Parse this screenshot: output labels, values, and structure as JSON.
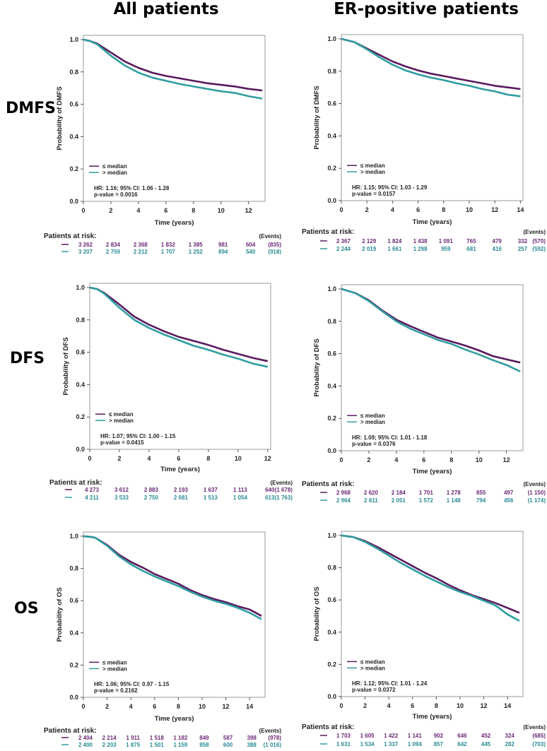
{
  "column_titles": [
    "All patients",
    "ER-positive patients"
  ],
  "row_labels": [
    "DMFS",
    "DFS",
    "OS"
  ],
  "colors": {
    "low": "#5a1a5e",
    "high": "#2f9da0",
    "low_text": "#6b2a77",
    "high_text": "#2a8c94"
  },
  "chart_data": [
    {
      "type": "line",
      "group": "All patients",
      "endpoint": "DMFS",
      "xlabel": "Time (years)",
      "ylabel": "Probability of DMFS",
      "xticks": [
        0,
        2,
        4,
        6,
        8,
        10,
        12
      ],
      "yticks": [
        "0.0",
        "0.2",
        "0.4",
        "0.6",
        "0.8",
        "1.0"
      ],
      "ylim": [
        0,
        1
      ],
      "legend": [
        "≤ median",
        "> median"
      ],
      "legend_placement": "bottom-left",
      "hr_text": "HR: 1.16; 95% CI: 1.06 - 1.28",
      "p_text": "p-value = 0.0016",
      "series": [
        {
          "name": "≤ median",
          "x": [
            0,
            0.5,
            1,
            2,
            3,
            4,
            5,
            6,
            7,
            8,
            9,
            10,
            11,
            12,
            13
          ],
          "y": [
            1,
            0.99,
            0.975,
            0.92,
            0.865,
            0.825,
            0.795,
            0.775,
            0.76,
            0.745,
            0.73,
            0.72,
            0.71,
            0.695,
            0.685
          ]
        },
        {
          "name": "> median",
          "x": [
            0,
            0.5,
            1,
            2,
            3,
            4,
            5,
            6,
            7,
            8,
            9,
            10,
            11,
            12,
            13
          ],
          "y": [
            1,
            0.99,
            0.97,
            0.9,
            0.84,
            0.795,
            0.765,
            0.745,
            0.725,
            0.71,
            0.695,
            0.68,
            0.67,
            0.65,
            0.635
          ]
        }
      ],
      "risk_label": "Patients at risk:",
      "events_label": "(Events)",
      "risk": [
        [
          "3 262",
          "2 834",
          "2 368",
          "1 832",
          "1 385",
          "981",
          "604"
        ],
        [
          "3 207",
          "2 759",
          "2 212",
          "1 707",
          "1 252",
          "894",
          "540"
        ]
      ],
      "events": [
        "(835)",
        "(918)"
      ]
    },
    {
      "type": "line",
      "group": "ER-positive patients",
      "endpoint": "DMFS",
      "xlabel": "Time (years)",
      "ylabel": "Probability of DMFS",
      "xticks": [
        0,
        2,
        4,
        6,
        8,
        10,
        12,
        14
      ],
      "yticks": [
        "0.0",
        "0.2",
        "0.4",
        "0.6",
        "0.8",
        "1.0"
      ],
      "ylim": [
        0,
        1
      ],
      "legend": [
        "≤ median",
        "> median"
      ],
      "legend_placement": "bottom-left",
      "hr_text": "HR: 1.15; 95% CI: 1.03 - 1.29",
      "p_text": "p-value = 0.0157",
      "series": [
        {
          "name": "≤ median",
          "x": [
            0,
            1,
            2,
            3,
            4,
            5,
            6,
            7,
            8,
            9,
            10,
            11,
            12,
            13,
            14
          ],
          "y": [
            1,
            0.98,
            0.94,
            0.9,
            0.86,
            0.83,
            0.805,
            0.785,
            0.77,
            0.755,
            0.74,
            0.725,
            0.71,
            0.7,
            0.69
          ]
        },
        {
          "name": "> median",
          "x": [
            0,
            1,
            2,
            3,
            4,
            5,
            6,
            7,
            8,
            9,
            10,
            11,
            12,
            13,
            14
          ],
          "y": [
            1,
            0.98,
            0.935,
            0.885,
            0.84,
            0.805,
            0.78,
            0.76,
            0.745,
            0.725,
            0.71,
            0.69,
            0.675,
            0.655,
            0.645
          ]
        }
      ],
      "risk_label": "Patients at risk:",
      "events_label": "(Events)",
      "risk": [
        [
          "2 367",
          "2 129",
          "1 824",
          "1 438",
          "1 091",
          "765",
          "479",
          "332"
        ],
        [
          "2 244",
          "2 019",
          "1 661",
          "1 298",
          "959",
          "681",
          "416",
          "257"
        ]
      ],
      "events": [
        "(570)",
        "(592)"
      ]
    },
    {
      "type": "line",
      "group": "All patients",
      "endpoint": "DFS",
      "xlabel": "Time (years)",
      "ylabel": "Probability of DFS",
      "xticks": [
        0,
        2,
        4,
        6,
        8,
        10,
        12
      ],
      "yticks": [
        "0.0",
        "0.2",
        "0.4",
        "0.6",
        "0.8",
        "1.0"
      ],
      "ylim": [
        0,
        1
      ],
      "legend": [
        "≤ median",
        "> median"
      ],
      "legend_placement": "bottom-left",
      "hr_text": "HR: 1.07; 95% CI: 1.00 - 1.15",
      "p_text": "p-value = 0.0415",
      "series": [
        {
          "name": "≤ median",
          "x": [
            0,
            0.5,
            1,
            2,
            3,
            4,
            5,
            6,
            7,
            8,
            9,
            10,
            11,
            12
          ],
          "y": [
            1,
            0.99,
            0.965,
            0.895,
            0.82,
            0.77,
            0.73,
            0.695,
            0.67,
            0.645,
            0.615,
            0.59,
            0.565,
            0.545
          ]
        },
        {
          "name": "> median",
          "x": [
            0,
            0.5,
            1,
            2,
            3,
            4,
            5,
            6,
            7,
            8,
            9,
            10,
            11,
            12
          ],
          "y": [
            1,
            0.99,
            0.96,
            0.875,
            0.8,
            0.75,
            0.71,
            0.675,
            0.64,
            0.615,
            0.585,
            0.56,
            0.53,
            0.51
          ]
        }
      ],
      "risk_label": "Patients at risk:",
      "events_label": "(Events)",
      "risk": [
        [
          "4 273",
          "3 612",
          "2 883",
          "2 193",
          "1 637",
          "1 113",
          "640"
        ],
        [
          "4 211",
          "3 533",
          "2 750",
          "2 081",
          "1 513",
          "1 054",
          "613"
        ]
      ],
      "events": [
        "(1 678)",
        "(1 763)"
      ]
    },
    {
      "type": "line",
      "group": "ER-positive patients",
      "endpoint": "DFS",
      "xlabel": "Time (years)",
      "ylabel": "Probability of DFS",
      "xticks": [
        0,
        2,
        4,
        6,
        8,
        10,
        12
      ],
      "yticks": [
        "0.0",
        "0.2",
        "0.4",
        "0.6",
        "0.8",
        "1.0"
      ],
      "ylim": [
        0,
        1
      ],
      "legend": [
        "≤ median",
        "> median"
      ],
      "legend_placement": "bottom-left",
      "hr_text": "HR: 1.09; 95% CI: 1.01 - 1.18",
      "p_text": "p-value = 0.0376",
      "series": [
        {
          "name": "≤ median",
          "x": [
            0,
            1,
            2,
            3,
            4,
            5,
            6,
            7,
            8,
            9,
            10,
            11,
            12,
            13
          ],
          "y": [
            1,
            0.975,
            0.93,
            0.865,
            0.81,
            0.77,
            0.735,
            0.7,
            0.675,
            0.65,
            0.62,
            0.585,
            0.565,
            0.545
          ]
        },
        {
          "name": "> median",
          "x": [
            0,
            1,
            2,
            3,
            4,
            5,
            6,
            7,
            8,
            9,
            10,
            11,
            12,
            13
          ],
          "y": [
            1,
            0.975,
            0.925,
            0.86,
            0.8,
            0.755,
            0.72,
            0.685,
            0.66,
            0.625,
            0.595,
            0.56,
            0.53,
            0.49
          ]
        }
      ],
      "risk_label": "Patients at risk:",
      "events_label": "(Events)",
      "risk": [
        [
          "2 968",
          "2 620",
          "2 184",
          "1 701",
          "1 278",
          "855",
          "497"
        ],
        [
          "2 964",
          "2 611",
          "2 051",
          "1 572",
          "1 148",
          "794",
          "456"
        ]
      ],
      "events": [
        "(1 150)",
        "(1 174)"
      ]
    },
    {
      "type": "line",
      "group": "All patients",
      "endpoint": "OS",
      "xlabel": "Time (years)",
      "ylabel": "Probability of OS",
      "xticks": [
        0,
        2,
        4,
        6,
        8,
        10,
        12,
        14
      ],
      "yticks": [
        "0.0",
        "0.2",
        "0.4",
        "0.6",
        "0.8",
        "1.0"
      ],
      "ylim": [
        0,
        1
      ],
      "legend": [
        "≤ median",
        "> median"
      ],
      "legend_placement": "bottom-left",
      "hr_text": "HR: 1.06; 95% CI: 0.97 - 1.15",
      "p_text": "p-value = 0.2162",
      "series": [
        {
          "name": "≤ median",
          "x": [
            0,
            0.7,
            1,
            2,
            3,
            4,
            5,
            6,
            7,
            8,
            9,
            10,
            11,
            12,
            13,
            14,
            15
          ],
          "y": [
            1,
            0.995,
            0.99,
            0.945,
            0.885,
            0.84,
            0.805,
            0.765,
            0.735,
            0.705,
            0.665,
            0.635,
            0.61,
            0.59,
            0.565,
            0.545,
            0.505
          ]
        },
        {
          "name": "> median",
          "x": [
            0,
            0.7,
            1,
            2,
            3,
            4,
            5,
            6,
            7,
            8,
            9,
            10,
            11,
            12,
            13,
            14,
            15
          ],
          "y": [
            1,
            0.995,
            0.99,
            0.94,
            0.875,
            0.825,
            0.785,
            0.75,
            0.72,
            0.69,
            0.655,
            0.625,
            0.6,
            0.58,
            0.555,
            0.525,
            0.485
          ]
        }
      ],
      "risk_label": "Patients at risk:",
      "events_label": "(Events)",
      "risk": [
        [
          "2 404",
          "2 214",
          "1 911",
          "1 518",
          "1 182",
          "849",
          "587",
          "398"
        ],
        [
          "2 400",
          "2 203",
          "1 875",
          "1 501",
          "1 159",
          "858",
          "600",
          "388"
        ]
      ],
      "events": [
        "(978)",
        "(1 016)"
      ]
    },
    {
      "type": "line",
      "group": "ER-positive patients",
      "endpoint": "OS",
      "xlabel": "Time (years)",
      "ylabel": "Probability of OS",
      "xticks": [
        0,
        2,
        4,
        6,
        8,
        10,
        12,
        14
      ],
      "yticks": [
        "0.0",
        "0.2",
        "0.4",
        "0.6",
        "0.8",
        "1.0"
      ],
      "ylim": [
        0,
        1
      ],
      "legend": [
        "≤ median",
        "> median"
      ],
      "legend_placement": "bottom-left",
      "hr_text": "HR: 1.12; 95% CI: 1.01 - 1.24",
      "p_text": "p-value = 0.0372",
      "series": [
        {
          "name": "≤ median",
          "x": [
            0,
            1,
            2,
            3,
            4,
            5,
            6,
            7,
            8,
            9,
            10,
            11,
            12,
            13,
            14,
            15
          ],
          "y": [
            1,
            0.99,
            0.965,
            0.93,
            0.89,
            0.85,
            0.81,
            0.77,
            0.735,
            0.695,
            0.66,
            0.63,
            0.605,
            0.58,
            0.55,
            0.52
          ]
        },
        {
          "name": "> median",
          "x": [
            0,
            1,
            2,
            3,
            4,
            5,
            6,
            7,
            8,
            9,
            10,
            11,
            12,
            13,
            14,
            15
          ],
          "y": [
            1,
            0.99,
            0.96,
            0.92,
            0.875,
            0.83,
            0.79,
            0.75,
            0.715,
            0.68,
            0.65,
            0.625,
            0.595,
            0.565,
            0.51,
            0.47
          ]
        }
      ],
      "risk_label": "Patients at risk:",
      "events_label": "(Events)",
      "risk": [
        [
          "1 703",
          "1 605",
          "1 422",
          "1 141",
          "902",
          "646",
          "452",
          "324"
        ],
        [
          "1 631",
          "1 534",
          "1 337",
          "1 094",
          "857",
          "642",
          "445",
          "282"
        ]
      ],
      "events": [
        "(685)",
        "(703)"
      ]
    }
  ]
}
